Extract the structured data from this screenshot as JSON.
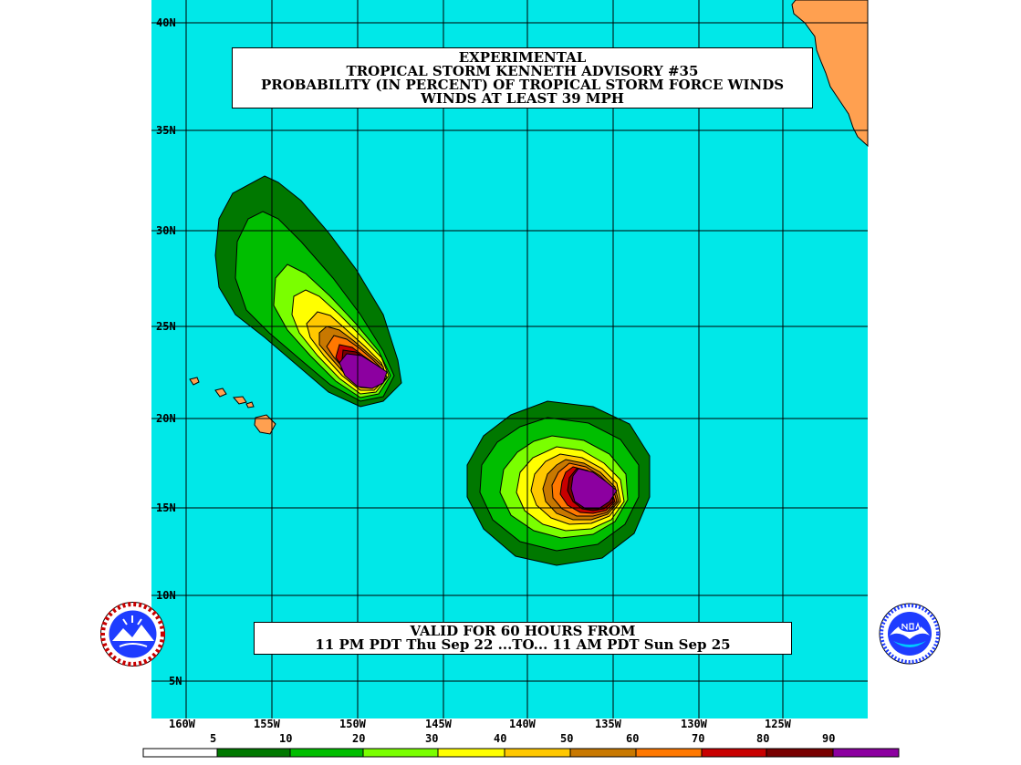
{
  "title": {
    "line1": "EXPERIMENTAL",
    "line2": "TROPICAL STORM KENNETH ADVISORY #35",
    "line3": "PROBABILITY (IN PERCENT) OF TROPICAL STORM FORCE WINDS",
    "line4": "WINDS AT LEAST 39 MPH"
  },
  "valid": {
    "line1": "VALID FOR 60 HOURS FROM",
    "line2": "11 PM PDT Thu Sep 22 ...TO... 11 AM PDT Sun Sep 25"
  },
  "lat_labels": [
    "40N",
    "35N",
    "30N",
    "25N",
    "20N",
    "15N",
    "10N",
    "5N"
  ],
  "lon_labels": [
    "160W",
    "155W",
    "150W",
    "145W",
    "140W",
    "135W",
    "130W",
    "125W"
  ],
  "legend": {
    "labels": [
      "5",
      "10",
      "20",
      "30",
      "40",
      "50",
      "60",
      "70",
      "80",
      "90"
    ],
    "colors": [
      "#ffffff",
      "#007800",
      "#00be00",
      "#7aff00",
      "#ffff00",
      "#ffc800",
      "#c87800",
      "#ff7800",
      "#c80000",
      "#780000",
      "#8c00a0"
    ]
  },
  "map_colors": {
    "ocean": "#00e8e8",
    "land": "#ffa050"
  },
  "logos": {
    "left": "nws-logo",
    "right": "noaa-logo"
  }
}
